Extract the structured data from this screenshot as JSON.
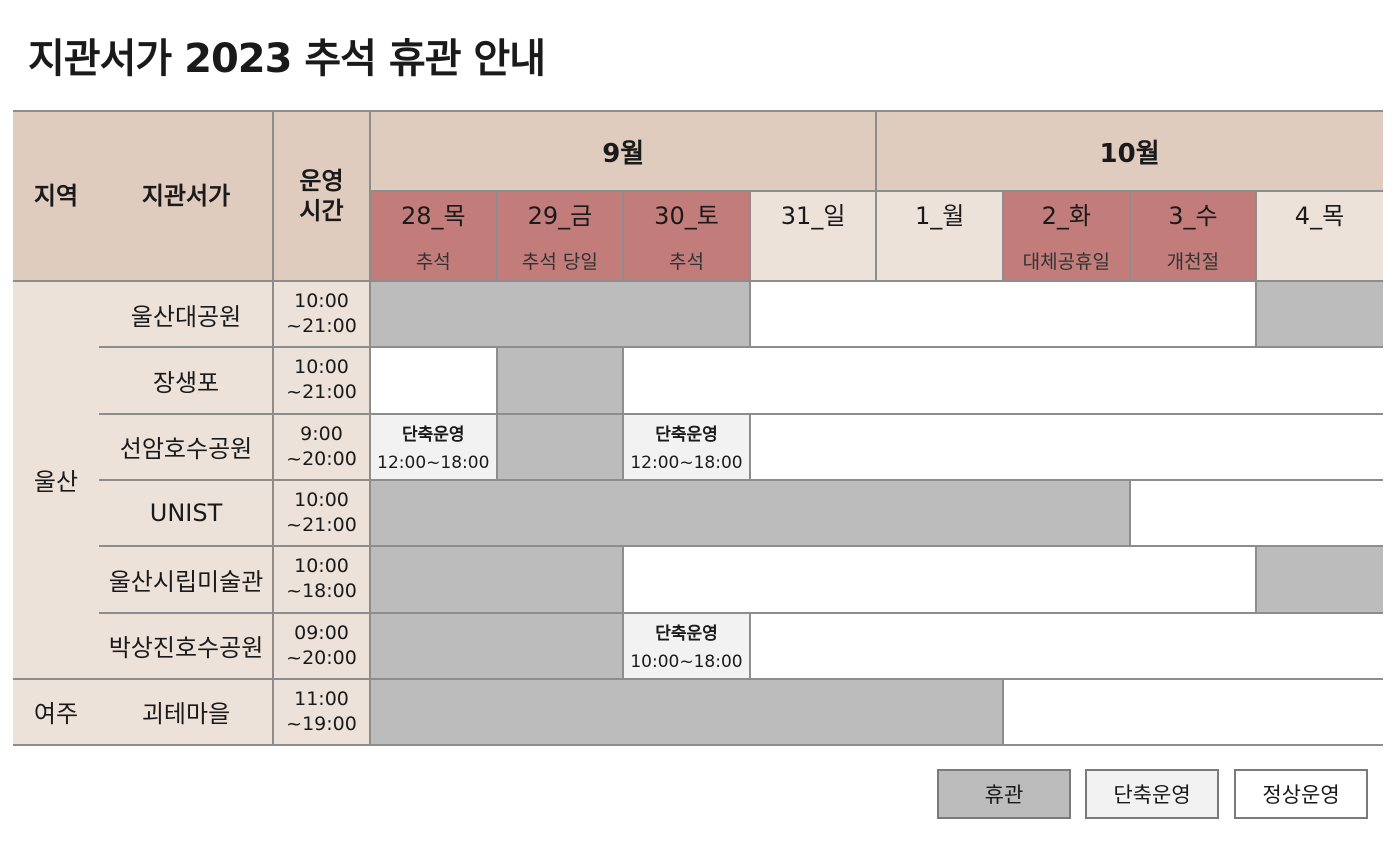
{
  "title": "지관서가 2023 추석 휴관 안내",
  "headers": {
    "region": "지역",
    "library": "지관서가",
    "hours": "운영\n시간"
  },
  "months": [
    "9월",
    "10월"
  ],
  "days": [
    {
      "label": "28_목",
      "sub": "추석",
      "holiday": true
    },
    {
      "label": "29_금",
      "sub": "추석 당일",
      "holiday": true
    },
    {
      "label": "30_토",
      "sub": "추석",
      "holiday": true
    },
    {
      "label": "31_일",
      "sub": "",
      "holiday": false
    },
    {
      "label": "1_월",
      "sub": "",
      "holiday": false
    },
    {
      "label": "2_화",
      "sub": "대체공휴일",
      "holiday": true
    },
    {
      "label": "3_수",
      "sub": "개천절",
      "holiday": true
    },
    {
      "label": "4_목",
      "sub": "",
      "holiday": false
    }
  ],
  "regions": [
    {
      "name": "울산",
      "rows": 6
    },
    {
      "name": "여주",
      "rows": 1
    }
  ],
  "libraries": [
    {
      "name": "울산대공원",
      "hours": "10:00\n~21:00",
      "status": [
        "closed",
        "closed",
        "closed",
        "open",
        "open",
        "open",
        "open",
        "closed"
      ],
      "short": []
    },
    {
      "name": "장생포",
      "hours": "10:00\n~21:00",
      "status": [
        "open",
        "closed",
        "open",
        "open",
        "open",
        "open",
        "open",
        "open"
      ],
      "short": []
    },
    {
      "name": "선암호수공원",
      "hours": "9:00\n~20:00",
      "status": [
        "short",
        "closed",
        "short",
        "open",
        "open",
        "open",
        "open",
        "open"
      ],
      "short": [
        {
          "day": 0,
          "label": "단축운영",
          "hours": "12:00~18:00"
        },
        {
          "day": 2,
          "label": "단축운영",
          "hours": "12:00~18:00"
        }
      ]
    },
    {
      "name": "UNIST",
      "hours": "10:00\n~21:00",
      "status": [
        "closed",
        "closed",
        "closed",
        "closed",
        "closed",
        "closed",
        "open",
        "open"
      ],
      "short": []
    },
    {
      "name": "울산시립미술관",
      "hours": "10:00\n~18:00",
      "status": [
        "closed",
        "closed",
        "open",
        "open",
        "open",
        "open",
        "open",
        "closed"
      ],
      "short": []
    },
    {
      "name": "박상진호수공원",
      "hours": "09:00\n~20:00",
      "status": [
        "closed",
        "closed",
        "short",
        "open",
        "open",
        "open",
        "open",
        "open"
      ],
      "short": [
        {
          "day": 2,
          "label": "단축운영",
          "hours": "10:00~18:00"
        }
      ]
    },
    {
      "name": "괴테마을",
      "hours": "11:00\n~19:00",
      "status": [
        "closed",
        "closed",
        "closed",
        "closed",
        "closed",
        "open",
        "open",
        "open"
      ],
      "short": []
    }
  ],
  "legend": [
    {
      "label": "휴관",
      "kind": "closed"
    },
    {
      "label": "단축운영",
      "kind": "short"
    },
    {
      "label": "정상운영",
      "kind": "open"
    }
  ],
  "colors": {
    "header": "#e0ccbe",
    "beige": "#ede2d9",
    "holiday": "#c27c7a",
    "closed": "#bcbcbc",
    "short": "#f2f2f2",
    "open": "#ffffff",
    "line": "#8d8d8d"
  }
}
